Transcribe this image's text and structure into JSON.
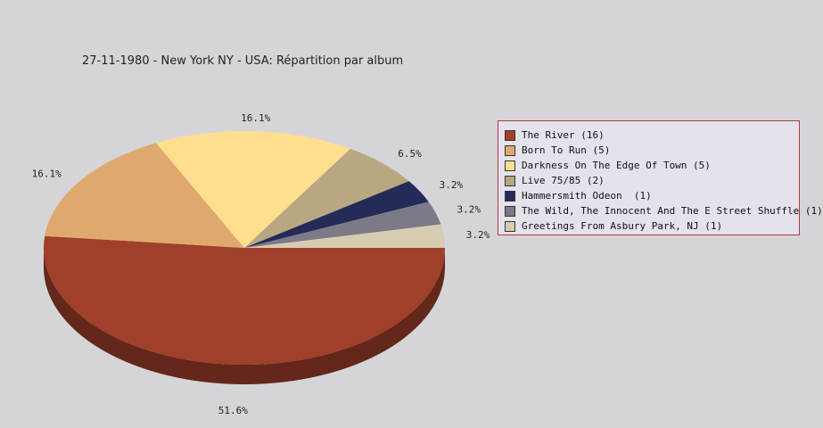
{
  "chart_data": {
    "type": "pie",
    "title": "27-11-1980 - New York NY - USA:  Répartition par album",
    "legend_position": "right",
    "slices": [
      {
        "label": "The River (16)",
        "value": 16,
        "percent_label": "51.6%",
        "color": "#a0402a"
      },
      {
        "label": "Born To Run (5)",
        "value": 5,
        "percent_label": "16.1%",
        "color": "#dfa96d"
      },
      {
        "label": "Darkness On The Edge Of Town (5)",
        "value": 5,
        "percent_label": "16.1%",
        "color": "#ffde8e"
      },
      {
        "label": "Live 75/85 (2)",
        "value": 2,
        "percent_label": "6.5%",
        "color": "#b8a781"
      },
      {
        "label": "Hammersmith Odeon  (1)",
        "value": 1,
        "percent_label": "3.2%",
        "color": "#252b58"
      },
      {
        "label": "The Wild, The Innocent And The E Street Shuffle (1)",
        "value": 1,
        "percent_label": "3.2%",
        "color": "#7b7a86"
      },
      {
        "label": "Greetings From Asbury Park, NJ (1)",
        "value": 1,
        "percent_label": "3.2%",
        "color": "#d8ccb0"
      }
    ]
  }
}
